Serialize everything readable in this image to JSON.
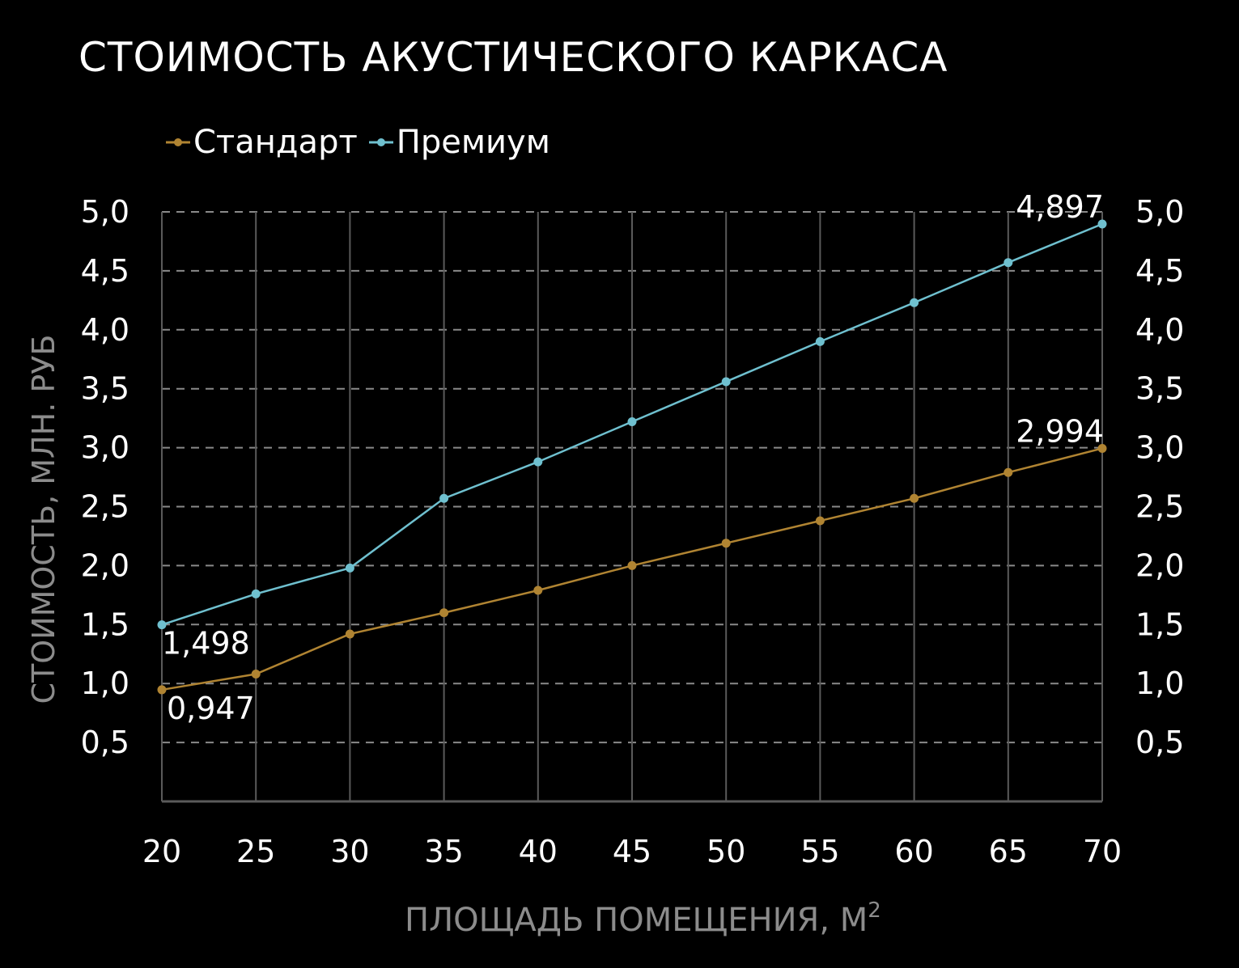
{
  "chart_data": {
    "type": "line",
    "title": "СТОИМОСТЬ АКУСТИЧЕСКОГО КАРКАСА",
    "xlabel": "ПЛОЩАДЬ ПОМЕЩЕНИЯ, М",
    "xlabel_sup": "2",
    "ylabel": "СТОИМОСТЬ, МЛН. РУБ",
    "x": [
      20,
      25,
      30,
      35,
      40,
      45,
      50,
      55,
      60,
      65,
      70
    ],
    "x_tick_labels": [
      "20",
      "25",
      "30",
      "35",
      "40",
      "45",
      "50",
      "55",
      "60",
      "65",
      "70"
    ],
    "ylim": [
      0,
      5
    ],
    "y_ticks": [
      0.5,
      1.0,
      1.5,
      2.0,
      2.5,
      3.0,
      3.5,
      4.0,
      4.5,
      5.0
    ],
    "y_tick_labels": [
      "0,5",
      "1,0",
      "1,5",
      "2,0",
      "2,5",
      "3,0",
      "3,5",
      "4,0",
      "4,5",
      "5,0"
    ],
    "secondary_y_axis": true,
    "grid": "dashed horizontal, solid vertical",
    "legend_position": "top-left",
    "series": [
      {
        "name": "Стандарт",
        "color": "#b08432",
        "values": [
          0.947,
          1.08,
          1.42,
          1.6,
          1.79,
          2.0,
          2.19,
          2.38,
          2.57,
          2.79,
          2.994
        ],
        "data_labels": [
          {
            "index": 0,
            "text": "0,947"
          },
          {
            "index": 10,
            "text": "2,994"
          }
        ]
      },
      {
        "name": "Премиум",
        "color": "#6fc0cf",
        "values": [
          1.498,
          1.76,
          1.98,
          2.57,
          2.88,
          3.22,
          3.56,
          3.9,
          4.23,
          4.57,
          4.897
        ],
        "data_labels": [
          {
            "index": 0,
            "text": "1,498"
          },
          {
            "index": 10,
            "text": "4,897"
          }
        ]
      }
    ]
  }
}
